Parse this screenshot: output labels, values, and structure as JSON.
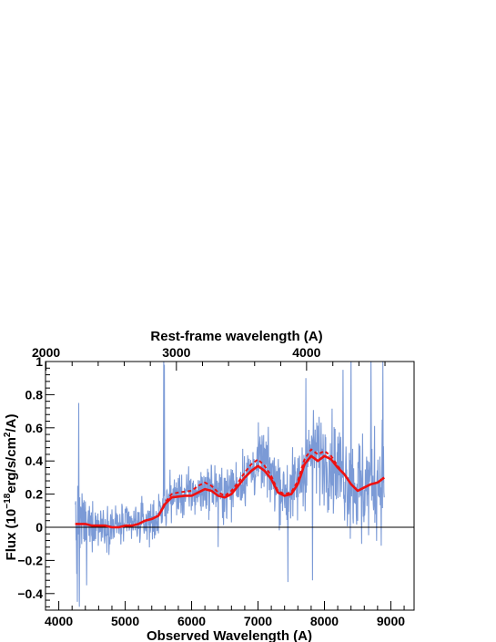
{
  "chart_data": {
    "type": "line",
    "title": "",
    "xlabel": "Observed Wavelength (A)",
    "ylabel": "Flux (10^-18 erg/s/cm^2/A)",
    "ylabel_parts": {
      "prefix": "Flux (10",
      "exp1": "−18",
      "mid": "erg/s/cm",
      "exp2": "2",
      "suffix": "/A)"
    },
    "top_xlabel": "Rest-frame wavelength (A)",
    "xlim": [
      3800,
      9350
    ],
    "ylim": [
      -0.5,
      1.0
    ],
    "x_ticks": [
      4000,
      5000,
      6000,
      7000,
      8000,
      9000
    ],
    "x_tick_labels": [
      "4000",
      "5000",
      "6000",
      "7000",
      "8000",
      "9000"
    ],
    "y_ticks": [
      -0.4,
      -0.2,
      0,
      0.2,
      0.4,
      0.6,
      0.8,
      1
    ],
    "y_tick_labels": [
      "−0.4",
      "−0.2",
      "0",
      "0.2",
      "0.4",
      "0.6",
      "0.8",
      "1"
    ],
    "top_ticks_observed": [
      3808,
      5771,
      7731
    ],
    "top_tick_labels": [
      "2000",
      "3000",
      "4000"
    ],
    "zero_line": true,
    "grid": false,
    "colors": {
      "spectrum": "#7b9ad6",
      "model": "#ee1111"
    },
    "series": [
      {
        "style": "noisy-fill",
        "color": "#7b9ad6",
        "x_range": [
          4250,
          8900
        ],
        "envelope": {
          "x": [
            4250,
            4500,
            5000,
            5500,
            5600,
            5700,
            6000,
            6300,
            6500,
            6800,
            7050,
            7300,
            7400,
            7600,
            7800,
            8000,
            8200,
            8500,
            8900
          ],
          "y": [
            0.03,
            0.02,
            0.01,
            0.05,
            0.12,
            0.19,
            0.2,
            0.24,
            0.2,
            0.3,
            0.4,
            0.28,
            0.2,
            0.26,
            0.45,
            0.42,
            0.36,
            0.24,
            0.3
          ]
        },
        "noise_sigma": [
          0.3,
          0.13,
          0.11,
          0.14,
          0.2,
          0.32
        ]
      },
      {
        "style": "solid",
        "color": "#ee1111",
        "x": [
          4250,
          4300,
          4400,
          4500,
          4600,
          4700,
          4800,
          4900,
          5000,
          5100,
          5200,
          5300,
          5400,
          5500,
          5600,
          5700,
          5800,
          5900,
          6000,
          6100,
          6200,
          6300,
          6400,
          6500,
          6600,
          6700,
          6800,
          6900,
          7000,
          7100,
          7200,
          7300,
          7400,
          7500,
          7600,
          7700,
          7800,
          7900,
          8000,
          8100,
          8200,
          8300,
          8400,
          8500,
          8600,
          8700,
          8800,
          8900
        ],
        "y": [
          0.02,
          0.02,
          0.02,
          0.01,
          0.01,
          0.01,
          0.0,
          0.0,
          0.01,
          0.01,
          0.02,
          0.04,
          0.05,
          0.07,
          0.14,
          0.18,
          0.185,
          0.19,
          0.19,
          0.21,
          0.23,
          0.22,
          0.19,
          0.18,
          0.2,
          0.25,
          0.3,
          0.34,
          0.37,
          0.34,
          0.29,
          0.21,
          0.19,
          0.2,
          0.26,
          0.38,
          0.43,
          0.4,
          0.43,
          0.41,
          0.36,
          0.32,
          0.26,
          0.22,
          0.24,
          0.26,
          0.27,
          0.3
        ]
      },
      {
        "style": "dashed",
        "color": "#ee1111",
        "x": [
          4250,
          4300,
          4400,
          4500,
          4600,
          4700,
          4800,
          4900,
          5000,
          5100,
          5200,
          5300,
          5400,
          5500,
          5600,
          5700,
          5800,
          5900,
          6000,
          6100,
          6200,
          6300,
          6400,
          6500,
          6600,
          6700,
          6800,
          6900,
          7000,
          7100,
          7200,
          7300,
          7400,
          7500,
          7600,
          7700,
          7800,
          7900,
          8000,
          8100,
          8200,
          8300,
          8400,
          8500,
          8600,
          8700,
          8800,
          8900
        ],
        "y": [
          0.02,
          0.02,
          0.02,
          0.01,
          0.01,
          0.01,
          0.0,
          0.0,
          0.01,
          0.01,
          0.02,
          0.04,
          0.05,
          0.07,
          0.15,
          0.2,
          0.21,
          0.215,
          0.22,
          0.25,
          0.27,
          0.25,
          0.21,
          0.19,
          0.22,
          0.27,
          0.33,
          0.38,
          0.41,
          0.37,
          0.31,
          0.22,
          0.2,
          0.21,
          0.28,
          0.41,
          0.47,
          0.44,
          0.46,
          0.43,
          0.37,
          0.32,
          0.26,
          0.22,
          0.24,
          0.26,
          0.27,
          0.3
        ]
      }
    ]
  }
}
